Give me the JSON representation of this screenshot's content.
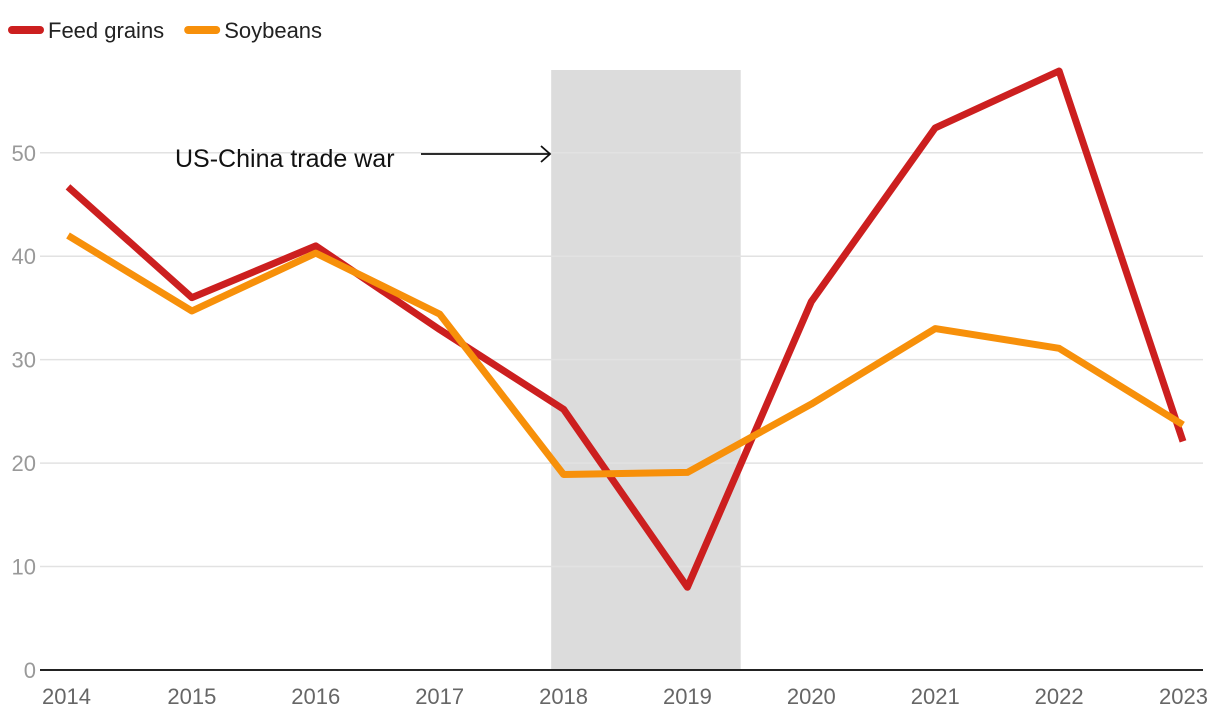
{
  "chart_data": {
    "type": "line",
    "title": "",
    "xlabel": "",
    "ylabel": "",
    "x": [
      "2014",
      "2015",
      "2016",
      "2017",
      "2018",
      "2019",
      "2020",
      "2021",
      "2022",
      "2023"
    ],
    "ylim": [
      0,
      58
    ],
    "yticks": [
      0,
      10,
      20,
      30,
      40,
      50
    ],
    "grid": true,
    "legend_position": "top-left",
    "series": [
      {
        "name": "Feed grains",
        "color": "#cc1f1f",
        "values": [
          46.7,
          36.0,
          41.0,
          32.9,
          25.2,
          8.0,
          35.6,
          52.4,
          57.9,
          22.1
        ]
      },
      {
        "name": "Soybeans",
        "color": "#f7900a",
        "values": [
          42.0,
          34.7,
          40.3,
          34.4,
          18.9,
          19.1,
          25.7,
          33.0,
          31.1,
          23.7
        ]
      }
    ],
    "shaded_region": {
      "x_start": 2017.9,
      "x_end": 2019.43,
      "color": "#dcdcdc"
    },
    "annotation": {
      "text": "US-China trade war",
      "arrow_to": "shaded-region"
    }
  }
}
